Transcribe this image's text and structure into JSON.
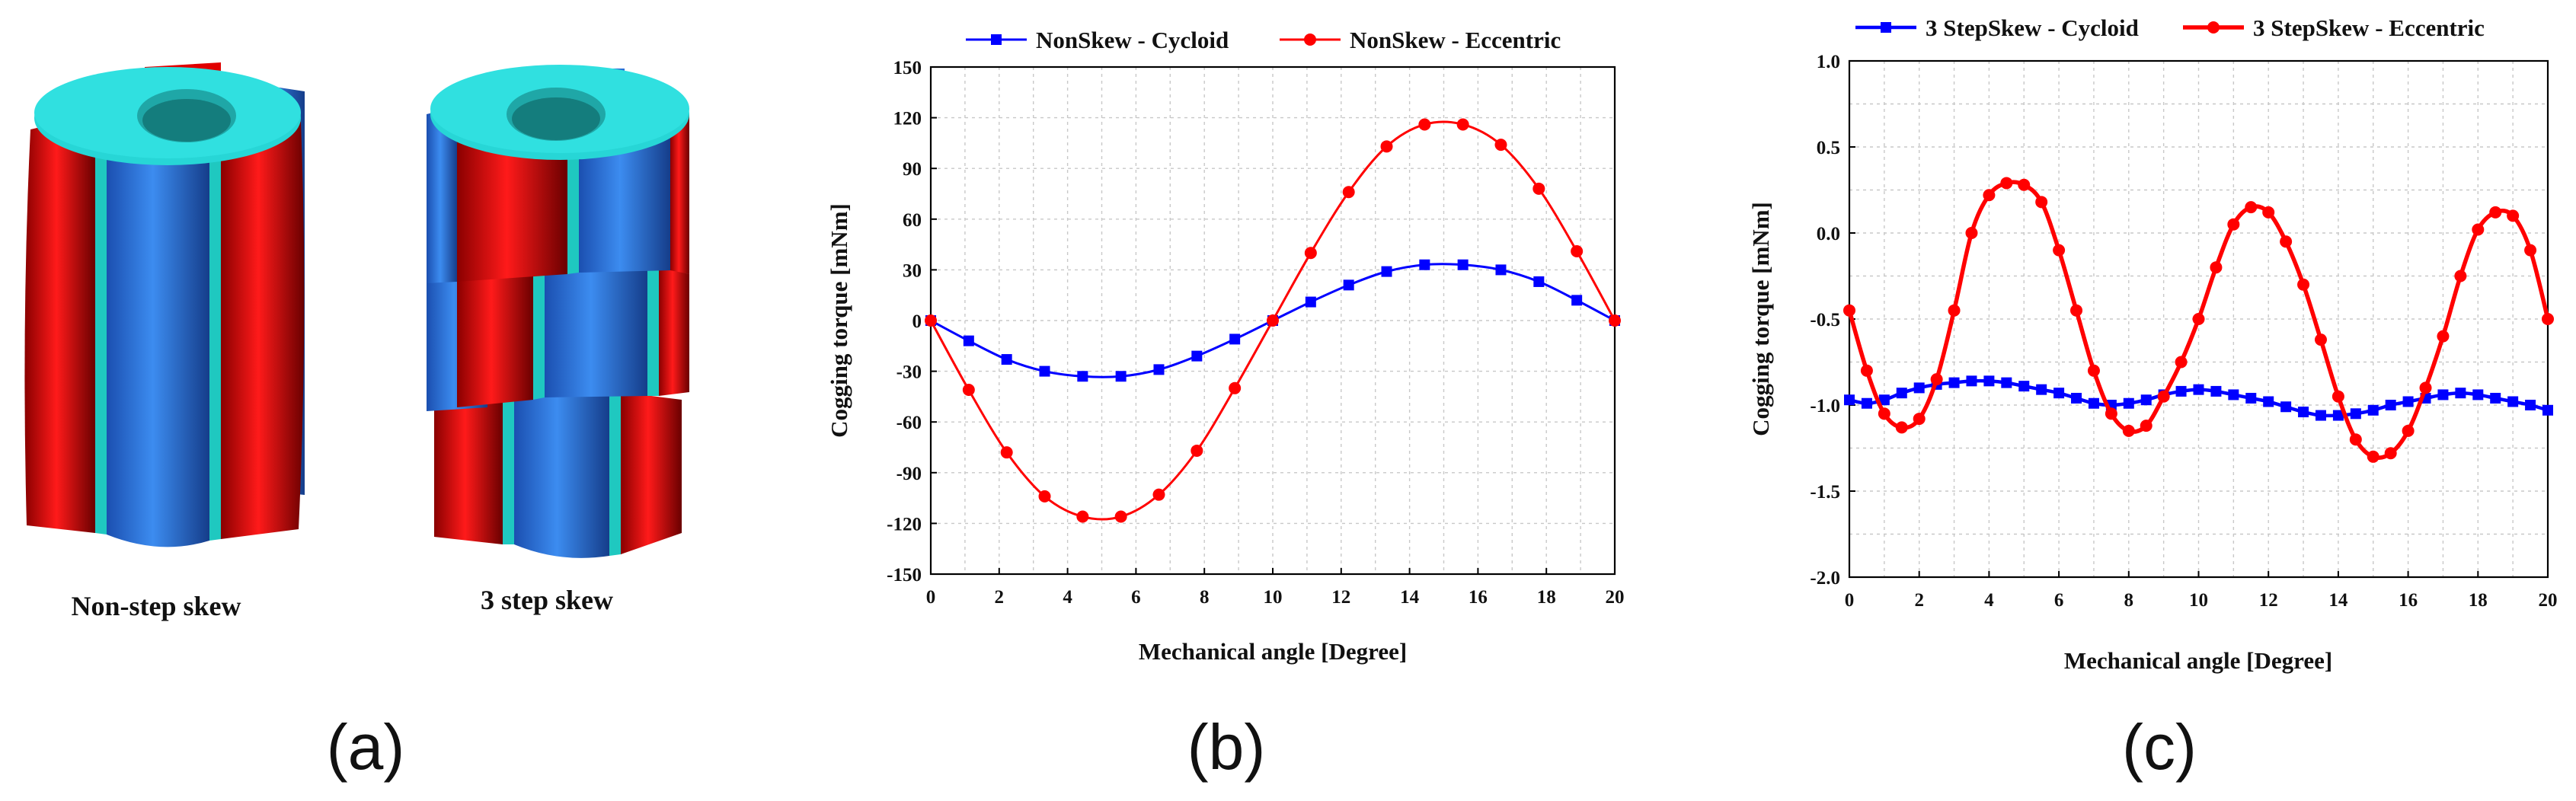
{
  "panel_a": {
    "label": "(a)",
    "images": [
      {
        "caption": "Non-step skew",
        "colors": {
          "magnet_red": "#e00000",
          "magnet_blue": "#2a6fd6",
          "core": "#27d6d6",
          "spacer": "#1fc8c0"
        }
      },
      {
        "caption": "3 step skew",
        "colors": {
          "magnet_red": "#e00000",
          "magnet_blue": "#2a6fd6",
          "core": "#27d6d6",
          "spacer": "#1fc8c0"
        }
      }
    ]
  },
  "panel_b": {
    "label": "(b)"
  },
  "panel_c": {
    "label": "(c)"
  },
  "chart_data": [
    {
      "type": "line",
      "xlabel": "Mechanical angle [Degree]",
      "ylabel": "Cogging torque [mNm]",
      "xlim": [
        0,
        20
      ],
      "ylim": [
        -150,
        150
      ],
      "xticks": [
        0,
        2,
        4,
        6,
        8,
        10,
        12,
        14,
        16,
        18,
        20
      ],
      "yticks": [
        -150,
        -120,
        -90,
        -60,
        -30,
        0,
        30,
        60,
        90,
        120,
        150
      ],
      "grid": true,
      "legend_position": "top",
      "series": [
        {
          "name": "NonSkew - Cycloid",
          "color": "#0000ff",
          "marker": "square",
          "x": [
            0,
            1.11,
            2.22,
            3.33,
            4.44,
            5.56,
            6.67,
            7.78,
            8.89,
            10,
            11.11,
            12.22,
            13.33,
            14.44,
            15.56,
            16.67,
            17.78,
            18.89,
            20
          ],
          "y": [
            0,
            -12,
            -23,
            -30,
            -33,
            -33,
            -29,
            -21,
            -11,
            0,
            11,
            21,
            29,
            33,
            33,
            30,
            23,
            12,
            0
          ]
        },
        {
          "name": "NonSkew - Eccentric",
          "color": "#ff0000",
          "marker": "circle",
          "x": [
            0,
            1.11,
            2.22,
            3.33,
            4.44,
            5.56,
            6.67,
            7.78,
            8.89,
            10,
            11.11,
            12.22,
            13.33,
            14.44,
            15.56,
            16.67,
            17.78,
            18.89,
            20
          ],
          "y": [
            0,
            -41,
            -78,
            -104,
            -116,
            -116,
            -103,
            -77,
            -40,
            0,
            40,
            76,
            103,
            116,
            116,
            104,
            78,
            41,
            0
          ]
        }
      ]
    },
    {
      "type": "line",
      "xlabel": "Mechanical angle [Degree]",
      "ylabel": "Cogging torque [mNm]",
      "xlim": [
        0,
        20
      ],
      "ylim": [
        -2.0,
        1.0
      ],
      "xticks": [
        0,
        2,
        4,
        6,
        8,
        10,
        12,
        14,
        16,
        18,
        20
      ],
      "yticks": [
        "-2.0",
        "-1.5",
        "-1.0",
        "-0.5",
        "0.0",
        "0.5",
        "1.0"
      ],
      "grid": true,
      "legend_position": "top",
      "series": [
        {
          "name": "3 StepSkew - Cycloid",
          "color": "#0000ff",
          "marker": "square",
          "x": [
            0,
            0.5,
            1,
            1.5,
            2,
            2.5,
            3,
            3.5,
            4,
            4.5,
            5,
            5.5,
            6,
            6.5,
            7,
            7.5,
            8,
            8.5,
            9,
            9.5,
            10,
            10.5,
            11,
            11.5,
            12,
            12.5,
            13,
            13.5,
            14,
            14.5,
            15,
            15.5,
            16,
            16.5,
            17,
            17.5,
            18,
            18.5,
            19,
            19.5,
            20
          ],
          "y": [
            -0.97,
            -0.99,
            -0.97,
            -0.93,
            -0.9,
            -0.88,
            -0.87,
            -0.86,
            -0.86,
            -0.87,
            -0.89,
            -0.91,
            -0.93,
            -0.96,
            -0.99,
            -1.0,
            -0.99,
            -0.97,
            -0.94,
            -0.92,
            -0.91,
            -0.92,
            -0.94,
            -0.96,
            -0.98,
            -1.01,
            -1.04,
            -1.06,
            -1.06,
            -1.05,
            -1.03,
            -1.0,
            -0.98,
            -0.96,
            -0.94,
            -0.93,
            -0.94,
            -0.96,
            -0.98,
            -1.0,
            -1.03
          ]
        },
        {
          "name": "3 StepSkew - Eccentric",
          "color": "#ff0000",
          "marker": "circle",
          "x": [
            0,
            0.5,
            1,
            1.5,
            2,
            2.5,
            3,
            3.5,
            4,
            4.5,
            5,
            5.5,
            6,
            6.5,
            7,
            7.5,
            8,
            8.5,
            9,
            9.5,
            10,
            10.5,
            11,
            11.5,
            12,
            12.5,
            13,
            13.5,
            14,
            14.5,
            15,
            15.5,
            16,
            16.5,
            17,
            17.5,
            18,
            18.5,
            19,
            19.5,
            20
          ],
          "y": [
            -0.45,
            -0.8,
            -1.05,
            -1.13,
            -1.08,
            -0.85,
            -0.45,
            0.0,
            0.22,
            0.29,
            0.28,
            0.18,
            -0.1,
            -0.45,
            -0.8,
            -1.05,
            -1.15,
            -1.12,
            -0.95,
            -0.75,
            -0.5,
            -0.2,
            0.05,
            0.15,
            0.12,
            -0.05,
            -0.3,
            -0.62,
            -0.95,
            -1.2,
            -1.3,
            -1.28,
            -1.15,
            -0.9,
            -0.6,
            -0.25,
            0.02,
            0.12,
            0.1,
            -0.1,
            -0.5
          ]
        }
      ]
    }
  ]
}
